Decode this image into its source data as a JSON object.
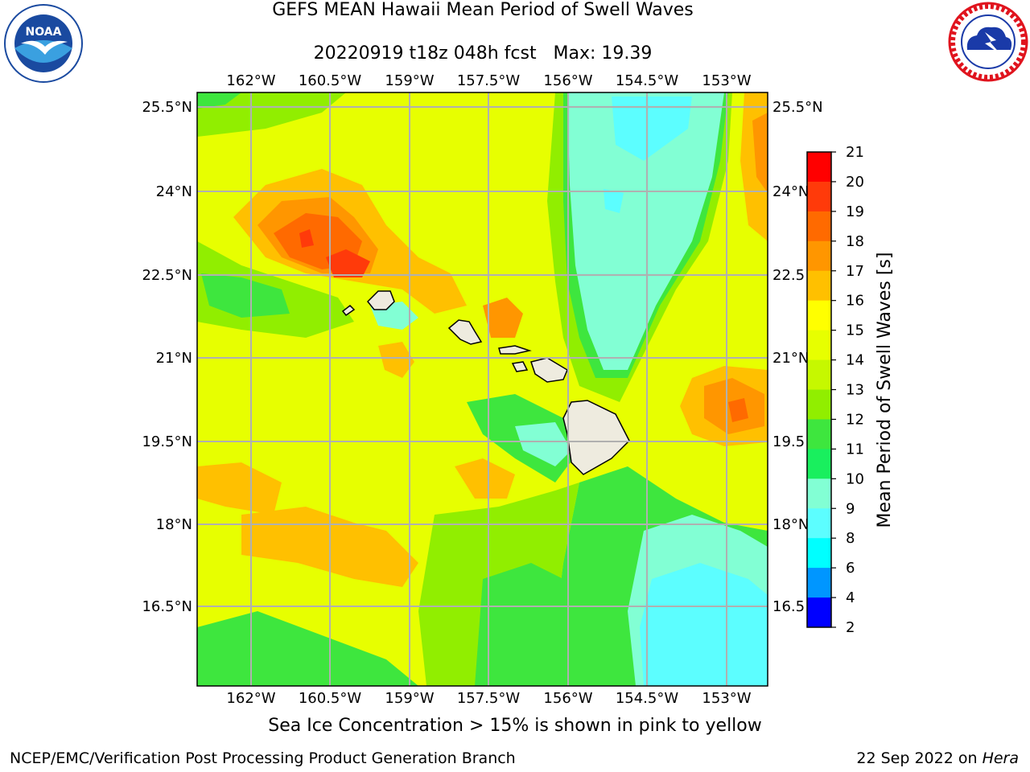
{
  "title_line1": "GEFS MEAN Hawaii Mean Period of Swell Waves",
  "title_line2": "20220919 t18z 048h fcst   Max: 19.39",
  "lon_labels": [
    "162°W",
    "160.5°W",
    "159°W",
    "157.5°W",
    "156°W",
    "154.5°W",
    "153°W"
  ],
  "lat_labels_left": [
    "25.5°N",
    "24°N",
    "22.5°N",
    "21°N",
    "19.5°N",
    "18°N",
    "16.5°N"
  ],
  "lat_labels_right": [
    "25.5°N",
    "24°N",
    "22.5",
    "21°N",
    "19.5",
    "18°N",
    "16.5"
  ],
  "colorbar": {
    "label": "Mean Period of Swell Waves [s]",
    "ticks": [
      "21",
      "20",
      "19",
      "18",
      "17",
      "16",
      "15",
      "14",
      "13",
      "12",
      "11",
      "10",
      "9",
      "8",
      "6",
      "4",
      "2"
    ],
    "colors": [
      "#ff0000",
      "#ff3a0a",
      "#ff6a00",
      "#ff9600",
      "#ffc000",
      "#ffff00",
      "#e7ff00",
      "#c6f800",
      "#91ee00",
      "#3ee63e",
      "#19ef5e",
      "#82ffd4",
      "#5cfeff",
      "#00ffff",
      "#0096ff",
      "#0000ff"
    ],
    "ticks_level_values": [
      21,
      20,
      19,
      18,
      17,
      16,
      15,
      14,
      13,
      12,
      11,
      10,
      9,
      8,
      6,
      4,
      2
    ]
  },
  "note": "Sea Ice Concentration > 15% is shown in pink to yellow",
  "footer_left": "NCEP/EMC/Verification Post Processing Product Generation Branch",
  "footer_date": "22 Sep 2022 on ",
  "footer_machine": "Hera",
  "logos": {
    "noaa": {
      "text": "NOAA",
      "ring_text": "NATIONAL OCEANIC AND ATMOSPHERIC ADMINISTRATION",
      "colors": [
        "#1a4aa0",
        "#3aa0e0",
        "#ffffff"
      ]
    },
    "nws": {
      "ring_text": "NATIONAL WEATHER SERVICE",
      "colors": [
        "#e0141e",
        "#1a3aa8",
        "#ffffff"
      ]
    }
  },
  "map": {
    "lon_range": [
      -163,
      -152.2
    ],
    "lat_range": [
      15.2,
      25.8
    ],
    "land_color": "#eeebdf",
    "grid_color": "#b0b0b0"
  }
}
